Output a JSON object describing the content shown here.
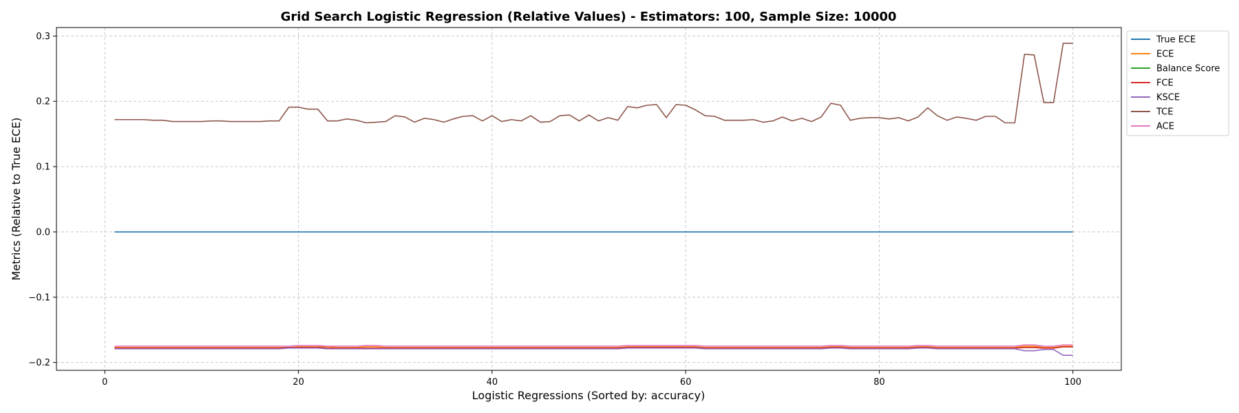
{
  "chart_data": {
    "type": "line",
    "title": "Grid Search Logistic Regression (Relative Values) - Estimators: 100, Sample Size: 10000",
    "xlabel": "Logistic Regressions (Sorted by: accuracy)",
    "ylabel": "Metrics (Relative to True ECE)",
    "xlim": [
      -5,
      105
    ],
    "ylim": [
      -0.212,
      0.313
    ],
    "xticks": [
      0,
      20,
      40,
      60,
      80,
      100
    ],
    "xtick_labels": [
      "0",
      "20",
      "40",
      "60",
      "80",
      "100"
    ],
    "yticks": [
      -0.2,
      -0.1,
      0.0,
      0.1,
      0.2,
      0.3
    ],
    "ytick_labels": [
      "−0.2",
      "−0.1",
      "0.0",
      "0.1",
      "0.2",
      "0.3"
    ],
    "grid": true,
    "legend_position": "outside-upper-right",
    "x": [
      1,
      2,
      3,
      4,
      5,
      6,
      7,
      8,
      9,
      10,
      11,
      12,
      13,
      14,
      15,
      16,
      17,
      18,
      19,
      20,
      21,
      22,
      23,
      24,
      25,
      26,
      27,
      28,
      29,
      30,
      31,
      32,
      33,
      34,
      35,
      36,
      37,
      38,
      39,
      40,
      41,
      42,
      43,
      44,
      45,
      46,
      47,
      48,
      49,
      50,
      51,
      52,
      53,
      54,
      55,
      56,
      57,
      58,
      59,
      60,
      61,
      62,
      63,
      64,
      65,
      66,
      67,
      68,
      69,
      70,
      71,
      72,
      73,
      74,
      75,
      76,
      77,
      78,
      79,
      80,
      81,
      82,
      83,
      84,
      85,
      86,
      87,
      88,
      89,
      90,
      91,
      92,
      93,
      94,
      95,
      96,
      97,
      98,
      99,
      100
    ],
    "series": [
      {
        "name": "True ECE",
        "color": "#1f77b4",
        "values": [
          0,
          0,
          0,
          0,
          0,
          0,
          0,
          0,
          0,
          0,
          0,
          0,
          0,
          0,
          0,
          0,
          0,
          0,
          0,
          0,
          0,
          0,
          0,
          0,
          0,
          0,
          0,
          0,
          0,
          0,
          0,
          0,
          0,
          0,
          0,
          0,
          0,
          0,
          0,
          0,
          0,
          0,
          0,
          0,
          0,
          0,
          0,
          0,
          0,
          0,
          0,
          0,
          0,
          0,
          0,
          0,
          0,
          0,
          0,
          0,
          0,
          0,
          0,
          0,
          0,
          0,
          0,
          0,
          0,
          0,
          0,
          0,
          0,
          0,
          0,
          0,
          0,
          0,
          0,
          0,
          0,
          0,
          0,
          0,
          0,
          0,
          0,
          0,
          0,
          0,
          0,
          0,
          0,
          0,
          0,
          0,
          0,
          0,
          0,
          0
        ]
      },
      {
        "name": "ECE",
        "color": "#ff7f0e",
        "values": [
          -0.177,
          -0.177,
          -0.177,
          -0.177,
          -0.177,
          -0.177,
          -0.177,
          -0.177,
          -0.177,
          -0.177,
          -0.177,
          -0.177,
          -0.177,
          -0.177,
          -0.177,
          -0.177,
          -0.177,
          -0.177,
          -0.177,
          -0.176,
          -0.176,
          -0.176,
          -0.176,
          -0.177,
          -0.177,
          -0.177,
          -0.176,
          -0.176,
          -0.177,
          -0.177,
          -0.177,
          -0.177,
          -0.177,
          -0.177,
          -0.177,
          -0.177,
          -0.177,
          -0.177,
          -0.177,
          -0.177,
          -0.177,
          -0.177,
          -0.177,
          -0.177,
          -0.177,
          -0.177,
          -0.177,
          -0.177,
          -0.177,
          -0.177,
          -0.177,
          -0.177,
          -0.177,
          -0.176,
          -0.176,
          -0.176,
          -0.176,
          -0.176,
          -0.176,
          -0.176,
          -0.176,
          -0.177,
          -0.177,
          -0.177,
          -0.177,
          -0.177,
          -0.177,
          -0.177,
          -0.177,
          -0.177,
          -0.177,
          -0.177,
          -0.177,
          -0.177,
          -0.176,
          -0.176,
          -0.177,
          -0.177,
          -0.177,
          -0.177,
          -0.177,
          -0.177,
          -0.177,
          -0.176,
          -0.176,
          -0.177,
          -0.177,
          -0.177,
          -0.177,
          -0.177,
          -0.177,
          -0.177,
          -0.177,
          -0.177,
          -0.175,
          -0.175,
          -0.177,
          -0.177,
          -0.175,
          -0.175
        ]
      },
      {
        "name": "Balance Score",
        "color": "#2ca02c",
        "values": [
          -0.178,
          -0.178,
          -0.178,
          -0.178,
          -0.178,
          -0.178,
          -0.178,
          -0.178,
          -0.178,
          -0.178,
          -0.178,
          -0.178,
          -0.178,
          -0.178,
          -0.178,
          -0.178,
          -0.178,
          -0.178,
          -0.177,
          -0.177,
          -0.177,
          -0.177,
          -0.178,
          -0.178,
          -0.178,
          -0.178,
          -0.178,
          -0.178,
          -0.178,
          -0.178,
          -0.178,
          -0.178,
          -0.178,
          -0.178,
          -0.178,
          -0.178,
          -0.178,
          -0.178,
          -0.178,
          -0.178,
          -0.178,
          -0.178,
          -0.178,
          -0.178,
          -0.178,
          -0.178,
          -0.178,
          -0.178,
          -0.178,
          -0.178,
          -0.178,
          -0.178,
          -0.178,
          -0.177,
          -0.177,
          -0.177,
          -0.177,
          -0.177,
          -0.177,
          -0.177,
          -0.177,
          -0.178,
          -0.178,
          -0.178,
          -0.178,
          -0.178,
          -0.178,
          -0.178,
          -0.178,
          -0.178,
          -0.178,
          -0.178,
          -0.178,
          -0.178,
          -0.177,
          -0.177,
          -0.178,
          -0.178,
          -0.178,
          -0.178,
          -0.178,
          -0.178,
          -0.178,
          -0.177,
          -0.177,
          -0.178,
          -0.178,
          -0.178,
          -0.178,
          -0.178,
          -0.178,
          -0.178,
          -0.178,
          -0.178,
          -0.177,
          -0.177,
          -0.178,
          -0.178,
          -0.176,
          -0.176
        ]
      },
      {
        "name": "FCE",
        "color": "#d62728",
        "values": [
          -0.178,
          -0.178,
          -0.178,
          -0.178,
          -0.178,
          -0.178,
          -0.178,
          -0.178,
          -0.178,
          -0.178,
          -0.178,
          -0.178,
          -0.178,
          -0.178,
          -0.178,
          -0.178,
          -0.178,
          -0.178,
          -0.177,
          -0.177,
          -0.177,
          -0.177,
          -0.178,
          -0.178,
          -0.178,
          -0.178,
          -0.178,
          -0.178,
          -0.178,
          -0.178,
          -0.178,
          -0.178,
          -0.178,
          -0.178,
          -0.178,
          -0.178,
          -0.178,
          -0.178,
          -0.178,
          -0.178,
          -0.178,
          -0.178,
          -0.178,
          -0.178,
          -0.178,
          -0.178,
          -0.178,
          -0.178,
          -0.178,
          -0.178,
          -0.178,
          -0.178,
          -0.178,
          -0.177,
          -0.177,
          -0.177,
          -0.177,
          -0.177,
          -0.177,
          -0.177,
          -0.177,
          -0.178,
          -0.178,
          -0.178,
          -0.178,
          -0.178,
          -0.178,
          -0.178,
          -0.178,
          -0.178,
          -0.178,
          -0.178,
          -0.178,
          -0.178,
          -0.177,
          -0.177,
          -0.178,
          -0.178,
          -0.178,
          -0.178,
          -0.178,
          -0.178,
          -0.178,
          -0.177,
          -0.177,
          -0.178,
          -0.178,
          -0.178,
          -0.178,
          -0.178,
          -0.178,
          -0.178,
          -0.178,
          -0.178,
          -0.177,
          -0.177,
          -0.178,
          -0.178,
          -0.176,
          -0.176
        ]
      },
      {
        "name": "KSCE",
        "color": "#9467bd",
        "values": [
          -0.179,
          -0.179,
          -0.179,
          -0.179,
          -0.179,
          -0.179,
          -0.179,
          -0.179,
          -0.179,
          -0.179,
          -0.179,
          -0.179,
          -0.179,
          -0.179,
          -0.179,
          -0.179,
          -0.179,
          -0.179,
          -0.178,
          -0.178,
          -0.178,
          -0.178,
          -0.179,
          -0.179,
          -0.179,
          -0.179,
          -0.179,
          -0.179,
          -0.179,
          -0.179,
          -0.179,
          -0.179,
          -0.179,
          -0.179,
          -0.179,
          -0.179,
          -0.179,
          -0.179,
          -0.179,
          -0.179,
          -0.179,
          -0.179,
          -0.179,
          -0.179,
          -0.179,
          -0.179,
          -0.179,
          -0.179,
          -0.179,
          -0.179,
          -0.179,
          -0.179,
          -0.179,
          -0.178,
          -0.178,
          -0.178,
          -0.178,
          -0.178,
          -0.178,
          -0.178,
          -0.178,
          -0.179,
          -0.179,
          -0.179,
          -0.179,
          -0.179,
          -0.179,
          -0.179,
          -0.179,
          -0.179,
          -0.179,
          -0.179,
          -0.179,
          -0.179,
          -0.178,
          -0.178,
          -0.179,
          -0.179,
          -0.179,
          -0.179,
          -0.179,
          -0.179,
          -0.179,
          -0.178,
          -0.178,
          -0.179,
          -0.179,
          -0.179,
          -0.179,
          -0.179,
          -0.179,
          -0.179,
          -0.179,
          -0.179,
          -0.182,
          -0.182,
          -0.18,
          -0.18,
          -0.189,
          -0.189
        ]
      },
      {
        "name": "TCE",
        "color": "#8c564b",
        "values": [
          0.172,
          0.172,
          0.172,
          0.172,
          0.171,
          0.171,
          0.169,
          0.169,
          0.169,
          0.169,
          0.17,
          0.17,
          0.169,
          0.169,
          0.169,
          0.169,
          0.17,
          0.17,
          0.191,
          0.191,
          0.188,
          0.188,
          0.17,
          0.17,
          0.173,
          0.171,
          0.167,
          0.168,
          0.169,
          0.178,
          0.176,
          0.168,
          0.174,
          0.172,
          0.168,
          0.173,
          0.177,
          0.178,
          0.17,
          0.178,
          0.169,
          0.172,
          0.17,
          0.178,
          0.168,
          0.169,
          0.178,
          0.179,
          0.17,
          0.179,
          0.17,
          0.175,
          0.171,
          0.192,
          0.19,
          0.194,
          0.195,
          0.175,
          0.195,
          0.194,
          0.187,
          0.178,
          0.177,
          0.171,
          0.171,
          0.171,
          0.172,
          0.168,
          0.17,
          0.176,
          0.17,
          0.174,
          0.169,
          0.176,
          0.197,
          0.194,
          0.171,
          0.174,
          0.175,
          0.175,
          0.173,
          0.175,
          0.17,
          0.176,
          0.19,
          0.178,
          0.171,
          0.176,
          0.174,
          0.171,
          0.177,
          0.177,
          0.167,
          0.167,
          0.272,
          0.271,
          0.198,
          0.198,
          0.289,
          0.289
        ]
      },
      {
        "name": "ACE",
        "color": "#e377c2",
        "values": [
          -0.175,
          -0.175,
          -0.175,
          -0.175,
          -0.175,
          -0.175,
          -0.175,
          -0.175,
          -0.175,
          -0.175,
          -0.175,
          -0.175,
          -0.175,
          -0.175,
          -0.175,
          -0.175,
          -0.175,
          -0.175,
          -0.175,
          -0.174,
          -0.174,
          -0.174,
          -0.175,
          -0.175,
          -0.175,
          -0.175,
          -0.174,
          -0.174,
          -0.175,
          -0.175,
          -0.175,
          -0.175,
          -0.175,
          -0.175,
          -0.175,
          -0.175,
          -0.175,
          -0.175,
          -0.175,
          -0.175,
          -0.175,
          -0.175,
          -0.175,
          -0.175,
          -0.175,
          -0.175,
          -0.175,
          -0.175,
          -0.175,
          -0.175,
          -0.175,
          -0.175,
          -0.175,
          -0.174,
          -0.174,
          -0.174,
          -0.174,
          -0.174,
          -0.174,
          -0.174,
          -0.174,
          -0.175,
          -0.175,
          -0.175,
          -0.175,
          -0.175,
          -0.175,
          -0.175,
          -0.175,
          -0.175,
          -0.175,
          -0.175,
          -0.175,
          -0.175,
          -0.174,
          -0.174,
          -0.175,
          -0.175,
          -0.175,
          -0.175,
          -0.175,
          -0.175,
          -0.175,
          -0.174,
          -0.174,
          -0.175,
          -0.175,
          -0.175,
          -0.175,
          -0.175,
          -0.175,
          -0.175,
          -0.175,
          -0.175,
          -0.173,
          -0.173,
          -0.175,
          -0.175,
          -0.173,
          -0.173
        ]
      }
    ]
  }
}
